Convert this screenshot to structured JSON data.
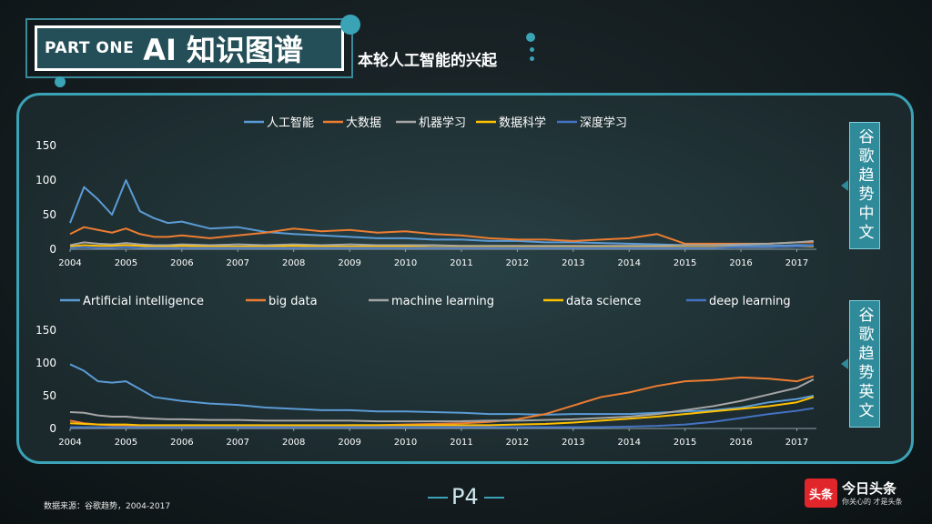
{
  "header": {
    "part_label": "PART ONE",
    "title": "AI 知识图谱",
    "subtitle": "本轮人工智能的兴起"
  },
  "side_tags": {
    "cn": "谷歌趋势中文",
    "en": "谷歌趋势英文"
  },
  "footer": {
    "source": "数据来源：谷歌趋势，2004-2017",
    "page": "P4",
    "logo_mark": "头条",
    "logo_name": "今日头条",
    "logo_slogan": "你关心的 才是头条"
  },
  "colors": {
    "series": [
      "#5b9bd5",
      "#ed7d31",
      "#a5a5a5",
      "#ffc000",
      "#4472c4"
    ],
    "accent": "#3aa3b6"
  },
  "chart_data": [
    {
      "type": "line",
      "x_ticks": [
        "2004",
        "2005",
        "2006",
        "2007",
        "2008",
        "2009",
        "2010",
        "2011",
        "2012",
        "2013",
        "2014",
        "2015",
        "2016",
        "2017"
      ],
      "y_ticks": [
        "0",
        "50",
        "100",
        "150"
      ],
      "ylim": [
        0,
        150
      ],
      "xlim": [
        2004,
        2017.35
      ],
      "legend_position": "top",
      "x": [
        2004,
        2004.25,
        2004.5,
        2004.75,
        2005,
        2005.25,
        2005.5,
        2005.75,
        2006,
        2006.5,
        2007,
        2007.5,
        2008,
        2008.5,
        2009,
        2009.5,
        2010,
        2010.5,
        2011,
        2011.5,
        2012,
        2012.5,
        2013,
        2013.5,
        2014,
        2014.5,
        2015,
        2015.5,
        2016,
        2016.5,
        2017,
        2017.3
      ],
      "series": [
        {
          "name": "人工智能",
          "values": [
            38,
            90,
            72,
            50,
            100,
            55,
            45,
            38,
            40,
            30,
            32,
            25,
            22,
            20,
            18,
            16,
            16,
            14,
            14,
            12,
            12,
            10,
            10,
            9,
            8,
            7,
            6,
            6,
            5,
            5,
            6,
            6
          ]
        },
        {
          "name": "大数据",
          "values": [
            22,
            32,
            28,
            24,
            30,
            22,
            18,
            18,
            20,
            16,
            20,
            24,
            30,
            26,
            28,
            24,
            26,
            22,
            20,
            16,
            14,
            14,
            12,
            14,
            16,
            22,
            8,
            8,
            8,
            8,
            10,
            10
          ]
        },
        {
          "name": "机器学习",
          "values": [
            6,
            10,
            8,
            7,
            9,
            7,
            6,
            6,
            7,
            6,
            7,
            6,
            7,
            6,
            7,
            6,
            6,
            6,
            5,
            5,
            5,
            5,
            5,
            5,
            5,
            5,
            6,
            6,
            7,
            8,
            10,
            12
          ]
        },
        {
          "name": "数据科学",
          "values": [
            4,
            6,
            5,
            5,
            6,
            5,
            4,
            4,
            5,
            4,
            4,
            4,
            5,
            4,
            4,
            4,
            4,
            3,
            3,
            3,
            3,
            3,
            3,
            3,
            3,
            3,
            3,
            3,
            3,
            3,
            4,
            4
          ]
        },
        {
          "name": "深度学习",
          "values": [
            2,
            3,
            2,
            2,
            3,
            2,
            2,
            2,
            2,
            2,
            2,
            2,
            2,
            2,
            2,
            2,
            2,
            2,
            2,
            2,
            2,
            2,
            2,
            2,
            2,
            2,
            2,
            2,
            3,
            3,
            4,
            5
          ]
        }
      ]
    },
    {
      "type": "line",
      "x_ticks": [
        "2004",
        "2005",
        "2006",
        "2007",
        "2008",
        "2009",
        "2010",
        "2011",
        "2012",
        "2013",
        "2014",
        "2015",
        "2016",
        "2017"
      ],
      "y_ticks": [
        "0",
        "50",
        "100",
        "150"
      ],
      "ylim": [
        0,
        150
      ],
      "xlim": [
        2004,
        2017.35
      ],
      "legend_position": "top",
      "x": [
        2004,
        2004.25,
        2004.5,
        2004.75,
        2005,
        2005.25,
        2005.5,
        2005.75,
        2006,
        2006.5,
        2007,
        2007.5,
        2008,
        2008.5,
        2009,
        2009.5,
        2010,
        2010.5,
        2011,
        2011.5,
        2012,
        2012.5,
        2013,
        2013.5,
        2014,
        2014.5,
        2015,
        2015.5,
        2016,
        2016.5,
        2017,
        2017.3
      ],
      "series": [
        {
          "name": "Artificial intelligence",
          "values": [
            98,
            88,
            72,
            70,
            72,
            60,
            48,
            45,
            42,
            38,
            36,
            32,
            30,
            28,
            28,
            26,
            26,
            25,
            24,
            22,
            22,
            21,
            22,
            22,
            22,
            24,
            26,
            28,
            32,
            40,
            45,
            50
          ]
        },
        {
          "name": "big data",
          "values": [
            12,
            8,
            6,
            5,
            5,
            4,
            4,
            4,
            4,
            4,
            4,
            4,
            4,
            4,
            5,
            5,
            6,
            7,
            8,
            10,
            14,
            22,
            35,
            48,
            55,
            65,
            72,
            74,
            78,
            76,
            72,
            80
          ]
        },
        {
          "name": "machine learning",
          "values": [
            25,
            24,
            20,
            18,
            18,
            16,
            15,
            14,
            14,
            13,
            13,
            12,
            12,
            12,
            12,
            11,
            11,
            11,
            11,
            12,
            12,
            13,
            14,
            16,
            18,
            22,
            28,
            34,
            42,
            52,
            62,
            75
          ]
        },
        {
          "name": "data science",
          "values": [
            8,
            7,
            6,
            6,
            6,
            5,
            5,
            5,
            5,
            5,
            5,
            5,
            5,
            5,
            5,
            5,
            5,
            5,
            5,
            5,
            6,
            7,
            9,
            12,
            15,
            18,
            22,
            26,
            30,
            34,
            40,
            48
          ]
        },
        {
          "name": "deep learning",
          "values": [
            2,
            2,
            2,
            2,
            2,
            2,
            2,
            2,
            2,
            2,
            2,
            2,
            2,
            2,
            2,
            2,
            2,
            2,
            2,
            2,
            2,
            2,
            2,
            2,
            3,
            4,
            6,
            10,
            16,
            22,
            27,
            31
          ]
        }
      ]
    }
  ]
}
